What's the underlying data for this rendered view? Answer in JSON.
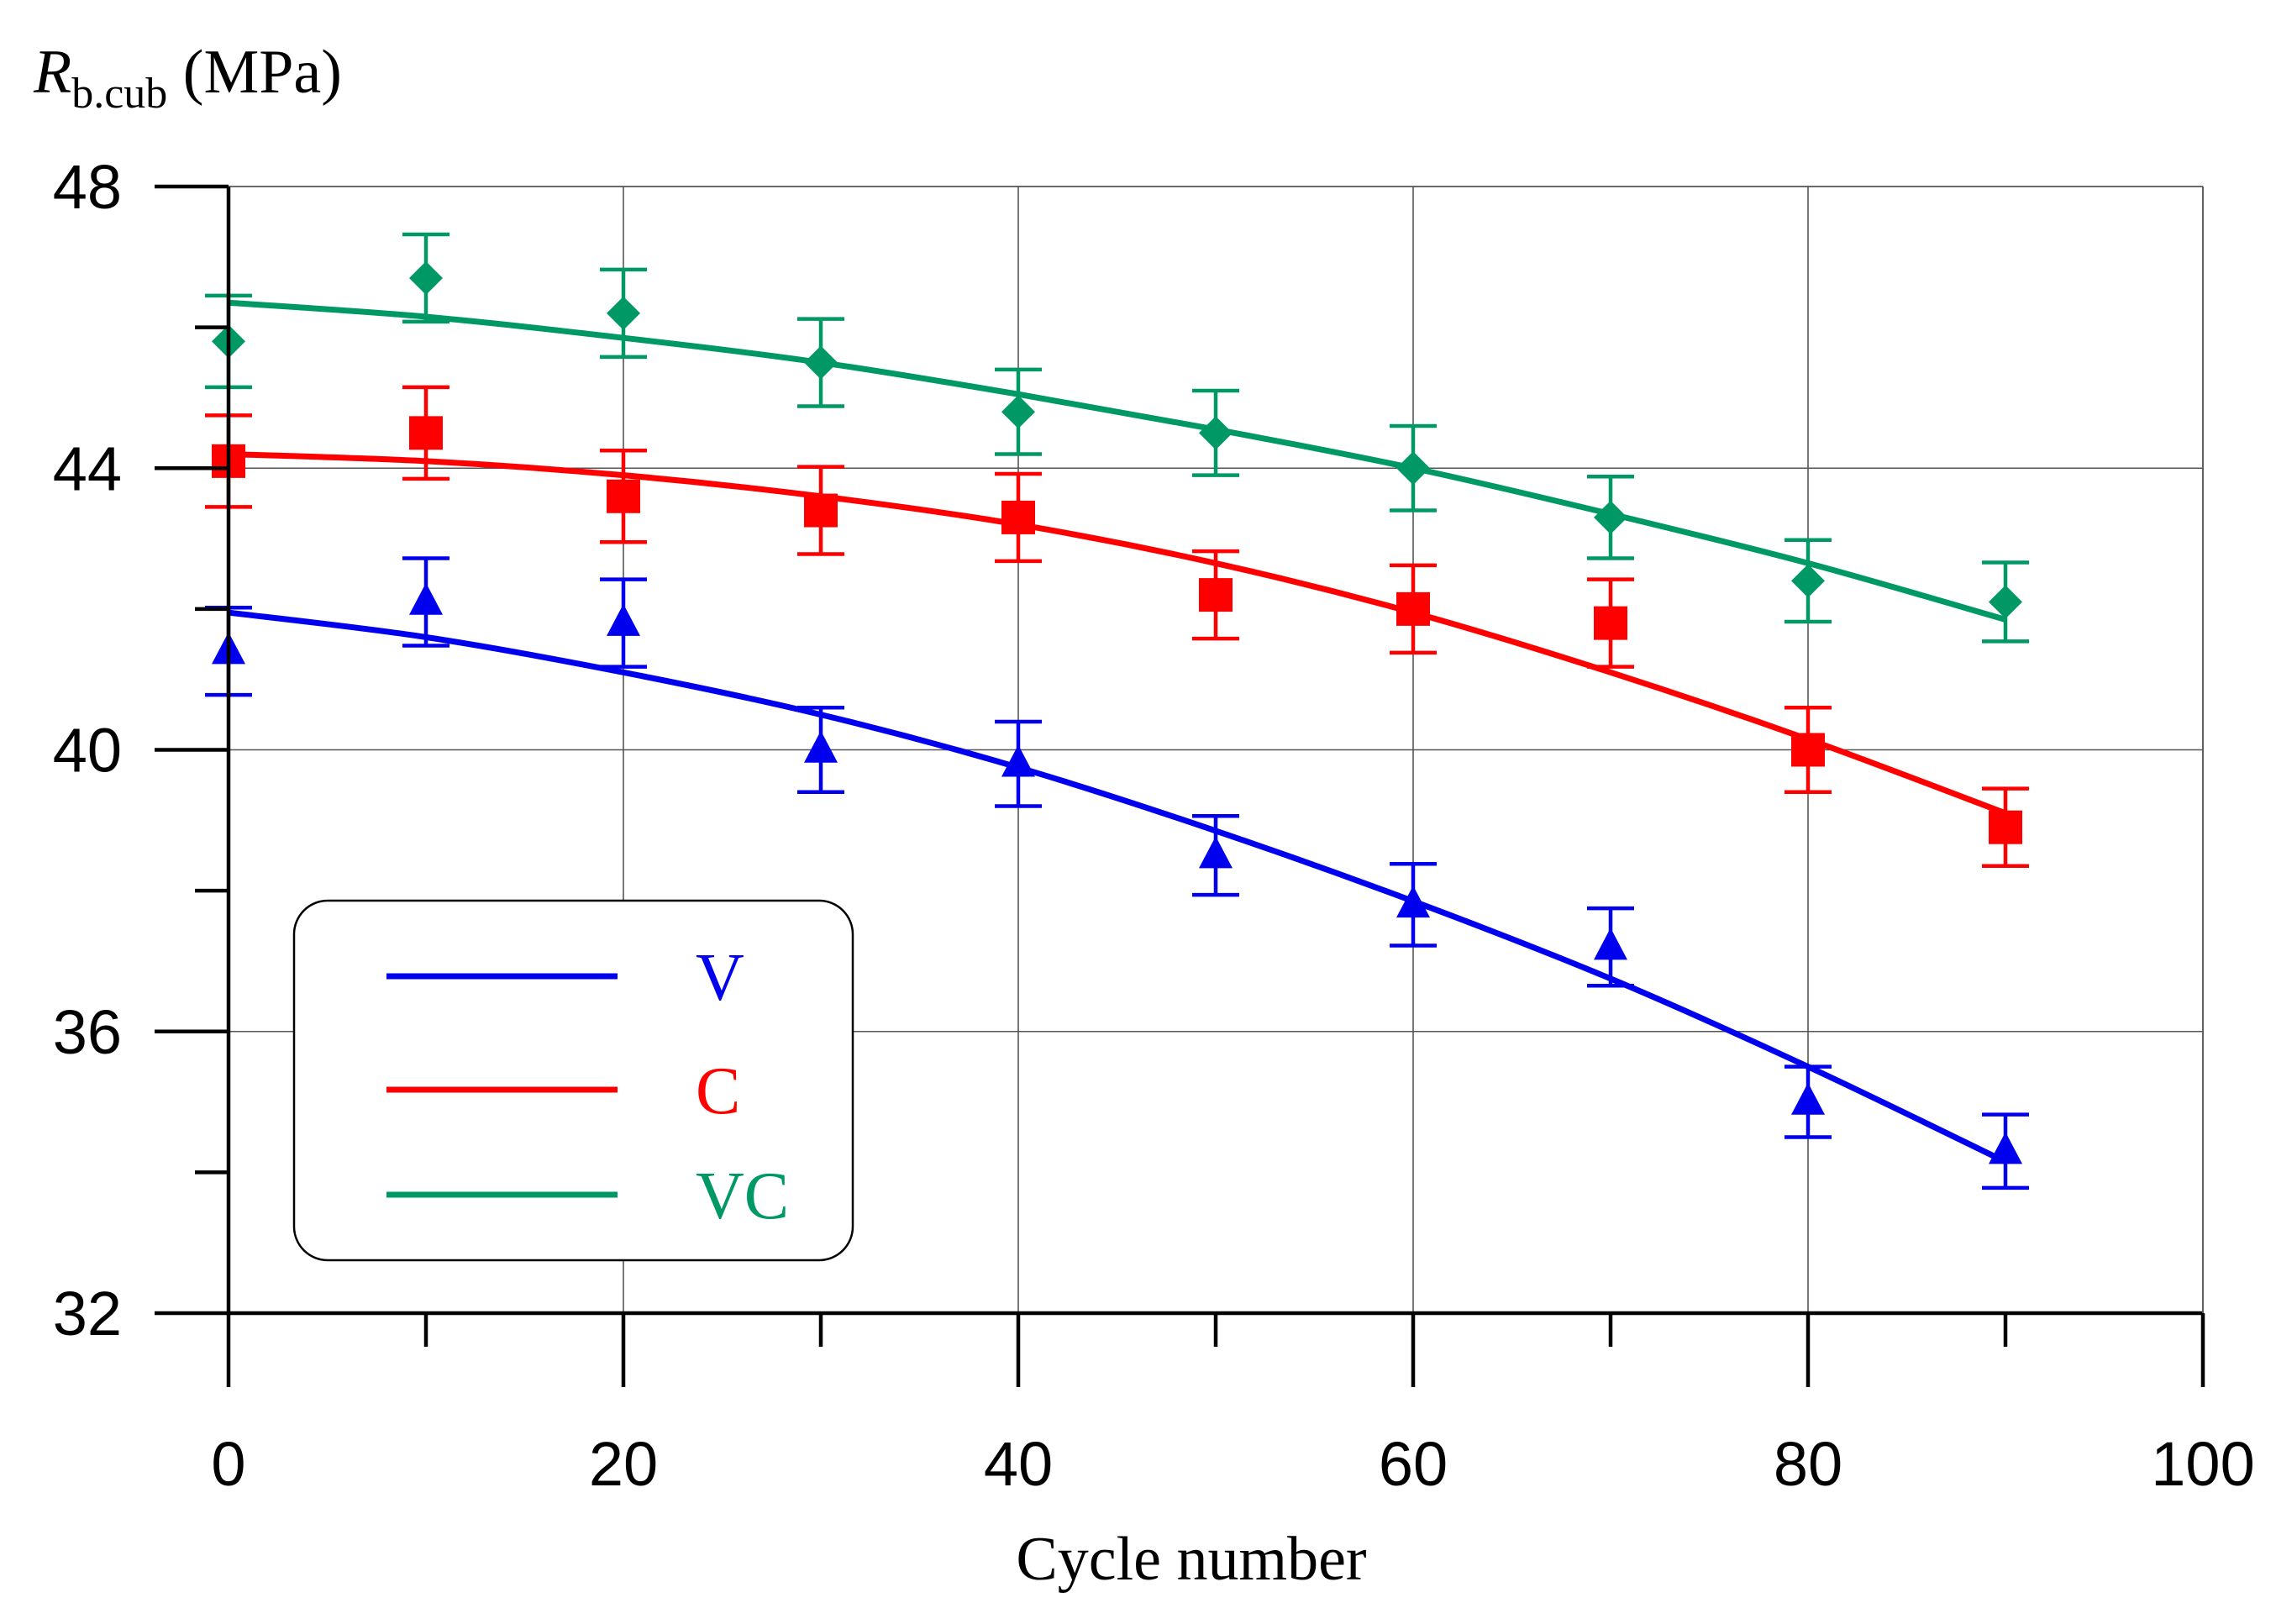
{
  "chart_data": {
    "type": "line",
    "title": "",
    "ylabel": {
      "main": "R",
      "subscript": "b.cub",
      "unit": " (MPa)"
    },
    "xlabel": "Cycle number",
    "xlim": [
      0,
      100
    ],
    "ylim": [
      32,
      48
    ],
    "x_ticks": [
      0,
      20,
      40,
      60,
      80,
      100
    ],
    "x_minor_ticks": [
      10,
      30,
      50,
      70,
      90
    ],
    "y_ticks": [
      32,
      36,
      40,
      44,
      48
    ],
    "y_minor_ticks": [
      34,
      38,
      42,
      46
    ],
    "x_tick_labels": [
      "0",
      "20",
      "40",
      "60",
      "80",
      "100"
    ],
    "y_tick_labels": [
      "32",
      "36",
      "40",
      "44",
      "48"
    ],
    "grid": true,
    "legend_position": "bottom-left",
    "series": [
      {
        "name": "V",
        "color": "#0000ee",
        "marker": "triangle",
        "x": [
          0,
          10,
          20,
          30,
          40,
          50,
          60,
          70,
          80,
          90
        ],
        "values": [
          41.4,
          42.1,
          41.8,
          40.0,
          39.8,
          38.5,
          37.8,
          37.2,
          35.0,
          34.3
        ],
        "error": [
          0.62,
          0.62,
          0.62,
          0.6,
          0.6,
          0.56,
          0.58,
          0.55,
          0.5,
          0.52
        ],
        "fit_x": [
          0,
          10,
          20,
          30,
          40,
          50,
          60,
          70,
          80,
          90
        ],
        "fit_y": [
          41.95,
          41.6,
          41.1,
          40.5,
          39.75,
          38.85,
          37.85,
          36.75,
          35.5,
          34.15
        ]
      },
      {
        "name": "C",
        "color": "#ff0000",
        "marker": "square",
        "x": [
          0,
          10,
          20,
          30,
          40,
          50,
          60,
          70,
          80,
          90
        ],
        "values": [
          44.1,
          44.5,
          43.6,
          43.4,
          43.3,
          42.2,
          42.0,
          41.8,
          40.0,
          38.9
        ],
        "error": [
          0.65,
          0.65,
          0.65,
          0.62,
          0.62,
          0.62,
          0.62,
          0.62,
          0.6,
          0.55
        ],
        "fit_x": [
          0,
          10,
          20,
          30,
          40,
          50,
          60,
          70,
          80,
          90
        ],
        "fit_y": [
          44.2,
          44.1,
          43.9,
          43.6,
          43.2,
          42.65,
          41.95,
          41.1,
          40.15,
          39.1
        ]
      },
      {
        "name": "VC",
        "color": "#009966",
        "marker": "diamond",
        "x": [
          0,
          10,
          20,
          30,
          40,
          50,
          60,
          70,
          80,
          90
        ],
        "values": [
          45.8,
          46.7,
          46.2,
          45.5,
          44.8,
          44.5,
          44.0,
          43.3,
          42.4,
          42.1
        ],
        "error": [
          0.65,
          0.62,
          0.62,
          0.62,
          0.6,
          0.6,
          0.6,
          0.58,
          0.58,
          0.56
        ],
        "fit_x": [
          0,
          10,
          20,
          30,
          40,
          50,
          60,
          70,
          80,
          90
        ],
        "fit_y": [
          46.35,
          46.15,
          45.85,
          45.5,
          45.05,
          44.55,
          44.0,
          43.35,
          42.65,
          41.85
        ]
      }
    ]
  }
}
